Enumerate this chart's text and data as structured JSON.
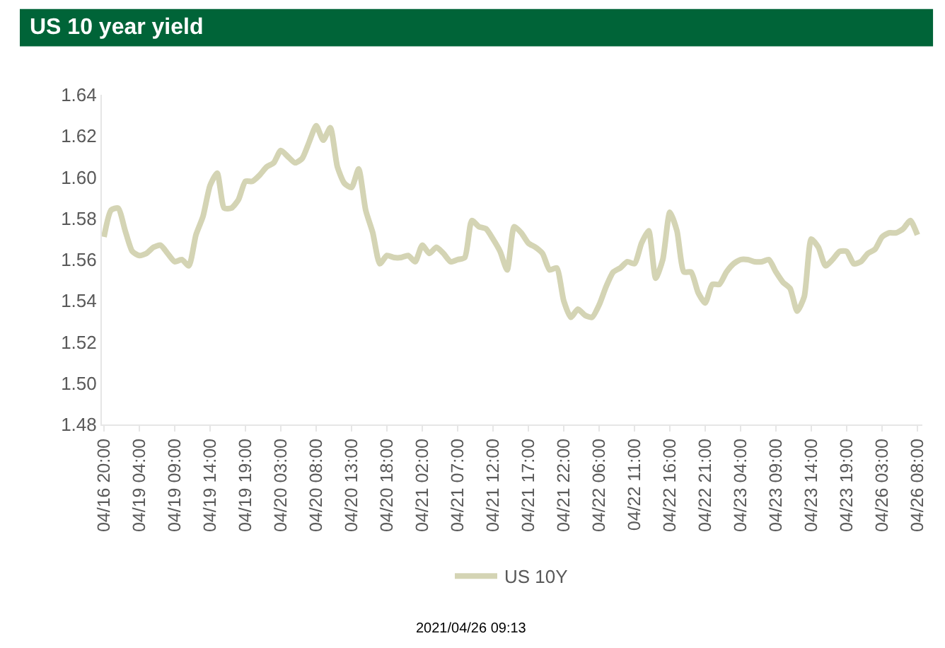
{
  "chart_data": {
    "type": "line",
    "title": "US 10 year yield",
    "categories": [
      "04/16 20:00",
      null,
      null,
      null,
      null,
      "04/19 04:00",
      null,
      null,
      null,
      null,
      "04/19 09:00",
      null,
      null,
      null,
      null,
      "04/19 14:00",
      null,
      null,
      null,
      null,
      "04/19 19:00",
      null,
      null,
      null,
      null,
      "04/20 03:00",
      null,
      null,
      null,
      null,
      "04/20 08:00",
      null,
      null,
      null,
      null,
      "04/20 13:00",
      null,
      null,
      null,
      null,
      "04/20 18:00",
      null,
      null,
      null,
      null,
      "04/21 02:00",
      null,
      null,
      null,
      null,
      "04/21 07:00",
      null,
      null,
      null,
      null,
      "04/21 12:00",
      null,
      null,
      null,
      null,
      "04/21 17:00",
      null,
      null,
      null,
      null,
      "04/21 22:00",
      null,
      null,
      null,
      null,
      "04/22 06:00",
      null,
      null,
      null,
      null,
      "04/22 11:00",
      null,
      null,
      null,
      null,
      "04/22 16:00",
      null,
      null,
      null,
      null,
      "04/22 21:00",
      null,
      null,
      null,
      null,
      "04/23 04:00",
      null,
      null,
      null,
      null,
      "04/23 09:00",
      null,
      null,
      null,
      null,
      "04/23 14:00",
      null,
      null,
      null,
      null,
      "04/23 19:00",
      null,
      null,
      null,
      null,
      "04/26 03:00",
      null,
      null,
      null,
      null,
      "04/26 08:00"
    ],
    "series": [
      {
        "name": "US 10Y",
        "color": "#d4d4b4",
        "values": [
          1.571,
          1.584,
          1.585,
          1.574,
          1.564,
          1.562,
          1.563,
          1.566,
          1.567,
          1.563,
          1.559,
          1.56,
          1.557,
          1.572,
          1.581,
          1.596,
          1.602,
          1.585,
          1.585,
          1.589,
          1.598,
          1.598,
          1.601,
          1.605,
          1.607,
          1.613,
          1.61,
          1.607,
          1.609,
          1.617,
          1.625,
          1.618,
          1.624,
          1.605,
          1.597,
          1.595,
          1.604,
          1.584,
          1.573,
          1.558,
          1.562,
          1.561,
          1.561,
          1.562,
          1.559,
          1.567,
          1.563,
          1.566,
          1.563,
          1.559,
          1.56,
          1.561,
          1.579,
          1.576,
          1.575,
          1.57,
          1.564,
          1.555,
          1.576,
          1.573,
          1.568,
          1.566,
          1.563,
          1.555,
          1.556,
          1.54,
          1.532,
          1.536,
          1.533,
          1.532,
          1.538,
          1.547,
          1.554,
          1.556,
          1.559,
          1.558,
          1.568,
          1.574,
          1.551,
          1.56,
          1.583,
          1.574,
          1.554,
          1.554,
          1.544,
          1.539,
          1.548,
          1.548,
          1.554,
          1.558,
          1.56,
          1.56,
          1.559,
          1.559,
          1.56,
          1.554,
          1.549,
          1.546,
          1.535,
          1.542,
          1.57,
          1.566,
          1.557,
          1.56,
          1.564,
          1.564,
          1.558,
          1.559,
          1.563,
          1.565,
          1.571,
          1.573,
          1.573,
          1.575,
          1.579,
          1.572
        ]
      }
    ],
    "ylim": [
      1.48,
      1.64
    ],
    "yticks": [
      1.48,
      {
        "value": 1.5,
        "label": "1.50"
      },
      1.52,
      1.54,
      1.56,
      1.58,
      {
        "value": 1.6,
        "label": "1.60"
      },
      1.62,
      1.64
    ],
    "grid": false,
    "legend": "bottom",
    "marker": "none",
    "line_style": "solid",
    "annotations": [
      "2021/04/26 09:13"
    ]
  }
}
